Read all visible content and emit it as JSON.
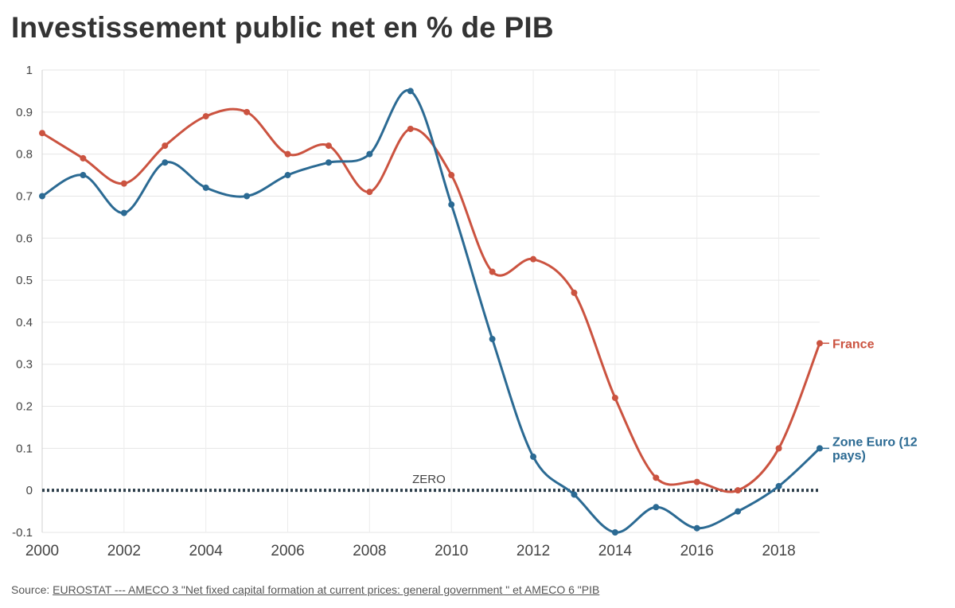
{
  "title": "Investissement public net en % de PIB",
  "source": {
    "prefix": "Source: ",
    "link_text": "EUROSTAT --- AMECO 3 \"Net fixed capital formation at current prices: general government \" et AMECO 6 \"PIB"
  },
  "chart_data": {
    "type": "line",
    "x": [
      2000,
      2001,
      2002,
      2003,
      2004,
      2005,
      2006,
      2007,
      2008,
      2009,
      2010,
      2011,
      2012,
      2013,
      2014,
      2015,
      2016,
      2017,
      2018,
      2019
    ],
    "x_ticks": [
      "2000",
      "2002",
      "2004",
      "2006",
      "2008",
      "2010",
      "2012",
      "2014",
      "2016",
      "2018"
    ],
    "y_ticks": [
      "1",
      "0.9",
      "0.8",
      "0.7",
      "0.6",
      "0.5",
      "0.4",
      "0.3",
      "0.2",
      "0.1",
      "0",
      "-0.1"
    ],
    "xlim": [
      2000,
      2019
    ],
    "ylim": [
      -0.1,
      1
    ],
    "grid": true,
    "series": [
      {
        "name": "France",
        "color": "#cb5340",
        "values": [
          0.85,
          0.79,
          0.73,
          0.82,
          0.89,
          0.9,
          0.8,
          0.82,
          0.71,
          0.86,
          0.75,
          0.52,
          0.55,
          0.47,
          0.22,
          0.03,
          0.02,
          0.0,
          0.1,
          0.35
        ]
      },
      {
        "name": "Zone Euro (12 pays)",
        "label_lines": [
          "Zone Euro (12",
          "pays)"
        ],
        "color": "#2b6a93",
        "values": [
          0.7,
          0.75,
          0.66,
          0.78,
          0.72,
          0.7,
          0.75,
          0.78,
          0.8,
          0.95,
          0.68,
          0.36,
          0.08,
          -0.01,
          -0.1,
          -0.04,
          -0.09,
          -0.05,
          0.01,
          0.1
        ]
      }
    ],
    "reference_line": {
      "value": 0,
      "label": "ZERO",
      "color": "#2d3e4a"
    }
  }
}
